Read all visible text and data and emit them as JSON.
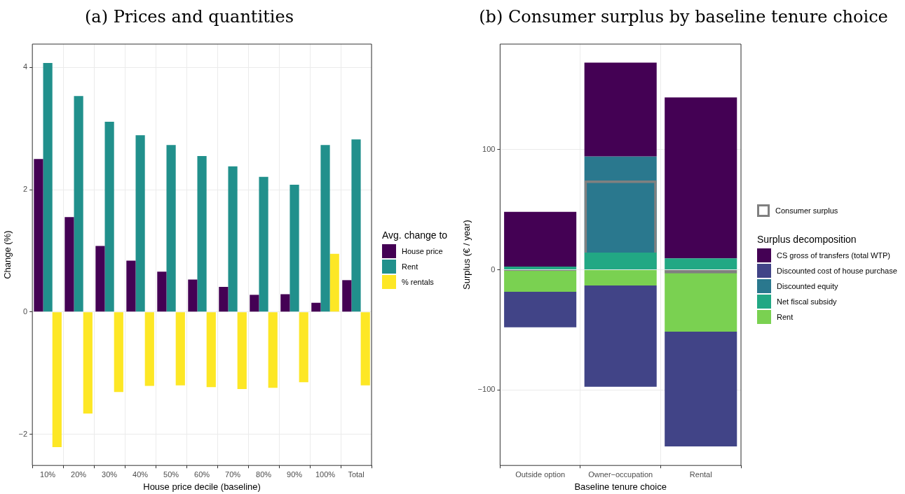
{
  "chart_data": [
    {
      "type": "bar",
      "title": "(a) Prices and quantities",
      "xlabel": "House price decile (baseline)",
      "ylabel": "Change (%)",
      "legend_title": "Avg. change to",
      "legend": "right",
      "grid": true,
      "categories": [
        "10%",
        "20%",
        "30%",
        "40%",
        "50%",
        "60%",
        "70%",
        "80%",
        "90%",
        "100%",
        "Total"
      ],
      "ylim": [
        -2.51,
        4.38
      ],
      "yticks": [
        -2,
        0,
        2,
        4
      ],
      "series": [
        {
          "name": "House price",
          "color": "#440154",
          "values": [
            2.5,
            1.55,
            1.08,
            0.84,
            0.66,
            0.53,
            0.41,
            0.28,
            0.29,
            0.15,
            0.52
          ]
        },
        {
          "name": "Rent",
          "color": "#21908c",
          "values": [
            4.07,
            3.53,
            3.11,
            2.89,
            2.73,
            2.55,
            2.38,
            2.21,
            2.08,
            2.73,
            2.82
          ]
        },
        {
          "name": "% rentals",
          "color": "#fde725",
          "values": [
            -2.21,
            -1.66,
            -1.31,
            -1.21,
            -1.2,
            -1.23,
            -1.26,
            -1.24,
            -1.15,
            0.95,
            -1.2
          ]
        }
      ]
    },
    {
      "type": "bar",
      "title": "(b) Consumer surplus by baseline tenure choice",
      "xlabel": "Baseline tenure choice",
      "ylabel": "Surplus (€ / year)",
      "legend_title": "Surplus decomposition",
      "legend": "right",
      "grid": true,
      "categories": [
        "Outside option",
        "Owner−occupation",
        "Rental"
      ],
      "ylim": [
        -163,
        188
      ],
      "yticks": [
        -100,
        0,
        100
      ],
      "series": [
        {
          "name": "Consumer surplus",
          "type": "bar",
          "color": "#808080",
          "base": [
            0,
            0,
            0
          ],
          "values": [
            -1,
            74.4,
            -3.1
          ]
        },
        {
          "name": "CS gross of transfers (total WTP)",
          "color": "#440154",
          "base": [
            2.6,
            94.4,
            9.5
          ],
          "values": [
            45.6,
            78.2,
            134
          ]
        },
        {
          "name": "Discounted cost of house purchase",
          "color": "#414487",
          "base": [
            -18.4,
            -13.1,
            -51.5
          ],
          "values": [
            -29.5,
            -84.4,
            -95.6
          ]
        },
        {
          "name": "Discounted equity",
          "color": "#2a788e",
          "base": [
            null,
            14.3,
            null
          ],
          "values": [
            null,
            80.1,
            null
          ]
        },
        {
          "name": "Net fiscal subsidy",
          "color": "#22a884",
          "base": [
            0,
            0,
            0
          ],
          "values": [
            2.6,
            14.3,
            9.5
          ]
        },
        {
          "name": "Rent",
          "color": "#7ad151",
          "base": [
            0,
            0,
            0
          ],
          "values": [
            -18.4,
            -13.1,
            -51.5
          ]
        }
      ]
    }
  ]
}
